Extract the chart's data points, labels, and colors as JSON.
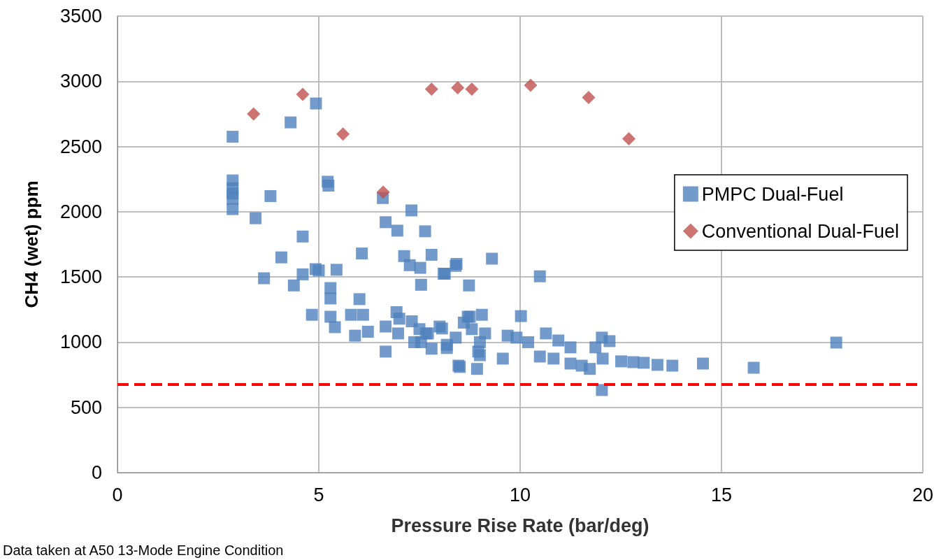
{
  "chart_data": {
    "type": "scatter",
    "xlabel": "Pressure Rise Rate (bar/deg)",
    "ylabel": "CH4 (wet) ppm",
    "xlim": [
      0,
      20
    ],
    "xticks": [
      0,
      5,
      10,
      15,
      20
    ],
    "ylim": [
      0,
      3500
    ],
    "yticks": [
      0,
      500,
      1000,
      1500,
      2000,
      2500,
      3000,
      3500
    ],
    "grid": true,
    "legend": "right",
    "series": [
      {
        "name": "PMPC Dual-Fuel",
        "color": "#4f81bd",
        "marker": "square",
        "x": [
          2.86,
          2.86,
          2.86,
          2.86,
          2.86,
          2.86,
          3.8,
          3.43,
          4.3,
          4.93,
          5.22,
          5.24,
          6.59,
          7.3,
          6.66,
          6.95,
          7.64,
          4.6,
          4.07,
          3.64,
          6.07,
          4.38,
          4.6,
          4.92,
          5.0,
          5.44,
          7.12,
          7.26,
          7.52,
          7.54,
          7.8,
          8.1,
          8.42,
          8.73,
          5.29,
          5.29,
          4.83,
          5.29,
          5.4,
          6.01,
          5.8,
          6.1,
          5.9,
          6.22,
          6.66,
          6.66,
          6.93,
          6.97,
          7.37,
          7.54,
          7.31,
          8.18,
          8.47,
          8.0,
          8.75,
          7.71,
          8.4,
          8.13,
          9.3,
          10.49,
          10.02,
          9.05,
          8.7,
          8.06,
          7.66,
          8.4,
          8.18,
          8.5,
          8.93,
          8.96,
          9.13,
          9.57,
          9.69,
          9.91,
          10.2,
          10.64,
          10.49,
          10.83,
          10.95,
          11.25,
          11.25,
          11.53,
          11.73,
          12.03,
          12.22,
          11.87,
          12.05,
          12.03,
          12.51,
          12.81,
          13.07,
          13.41,
          13.78,
          14.54,
          15.8,
          17.85,
          7.0,
          7.5,
          7.8,
          8.6,
          9.0,
          9.0,
          8.8
        ],
        "values": [
          2575,
          2240,
          2180,
          2140,
          2100,
          2020,
          2120,
          1950,
          2685,
          2830,
          2230,
          2200,
          2105,
          2010,
          1920,
          1855,
          1850,
          1810,
          1650,
          1490,
          1680,
          1435,
          1520,
          1560,
          1550,
          1555,
          1660,
          1590,
          1570,
          1440,
          1670,
          1525,
          1600,
          1435,
          1415,
          1335,
          1210,
          1195,
          1115,
          1330,
          1210,
          1210,
          1050,
          1080,
          1120,
          928,
          1230,
          1067,
          1000,
          1000,
          1160,
          980,
          820,
          1120,
          1195,
          1067,
          1585,
          1525,
          1640,
          1505,
          1200,
          1210,
          1195,
          1105,
          1067,
          1035,
          955,
          810,
          795,
          928,
          1067,
          874,
          1050,
          1035,
          1000,
          1067,
          890,
          874,
          1013,
          960,
          836,
          820,
          795,
          1035,
          1008,
          960,
          874,
          633,
          853,
          847,
          842,
          826,
          820,
          836,
          804,
          997,
          1180,
          1100,
          950,
          1150,
          1000,
          900,
          1100
        ]
      },
      {
        "name": "Conventional Dual-Fuel",
        "color": "#c0504d",
        "marker": "diamond",
        "x": [
          3.38,
          4.6,
          5.6,
          6.6,
          7.8,
          8.45,
          8.8,
          10.26,
          11.7,
          12.7
        ],
        "values": [
          2750,
          2900,
          2595,
          2150,
          2940,
          2950,
          2940,
          2970,
          2875,
          2560
        ]
      }
    ],
    "ref_lines": [
      {
        "axis": "y",
        "value": 675,
        "label": null,
        "color": "#ff0000",
        "line_style": "dashed"
      }
    ],
    "annotations": [
      "Data taken at A50 13-Mode Engine Condition"
    ]
  }
}
